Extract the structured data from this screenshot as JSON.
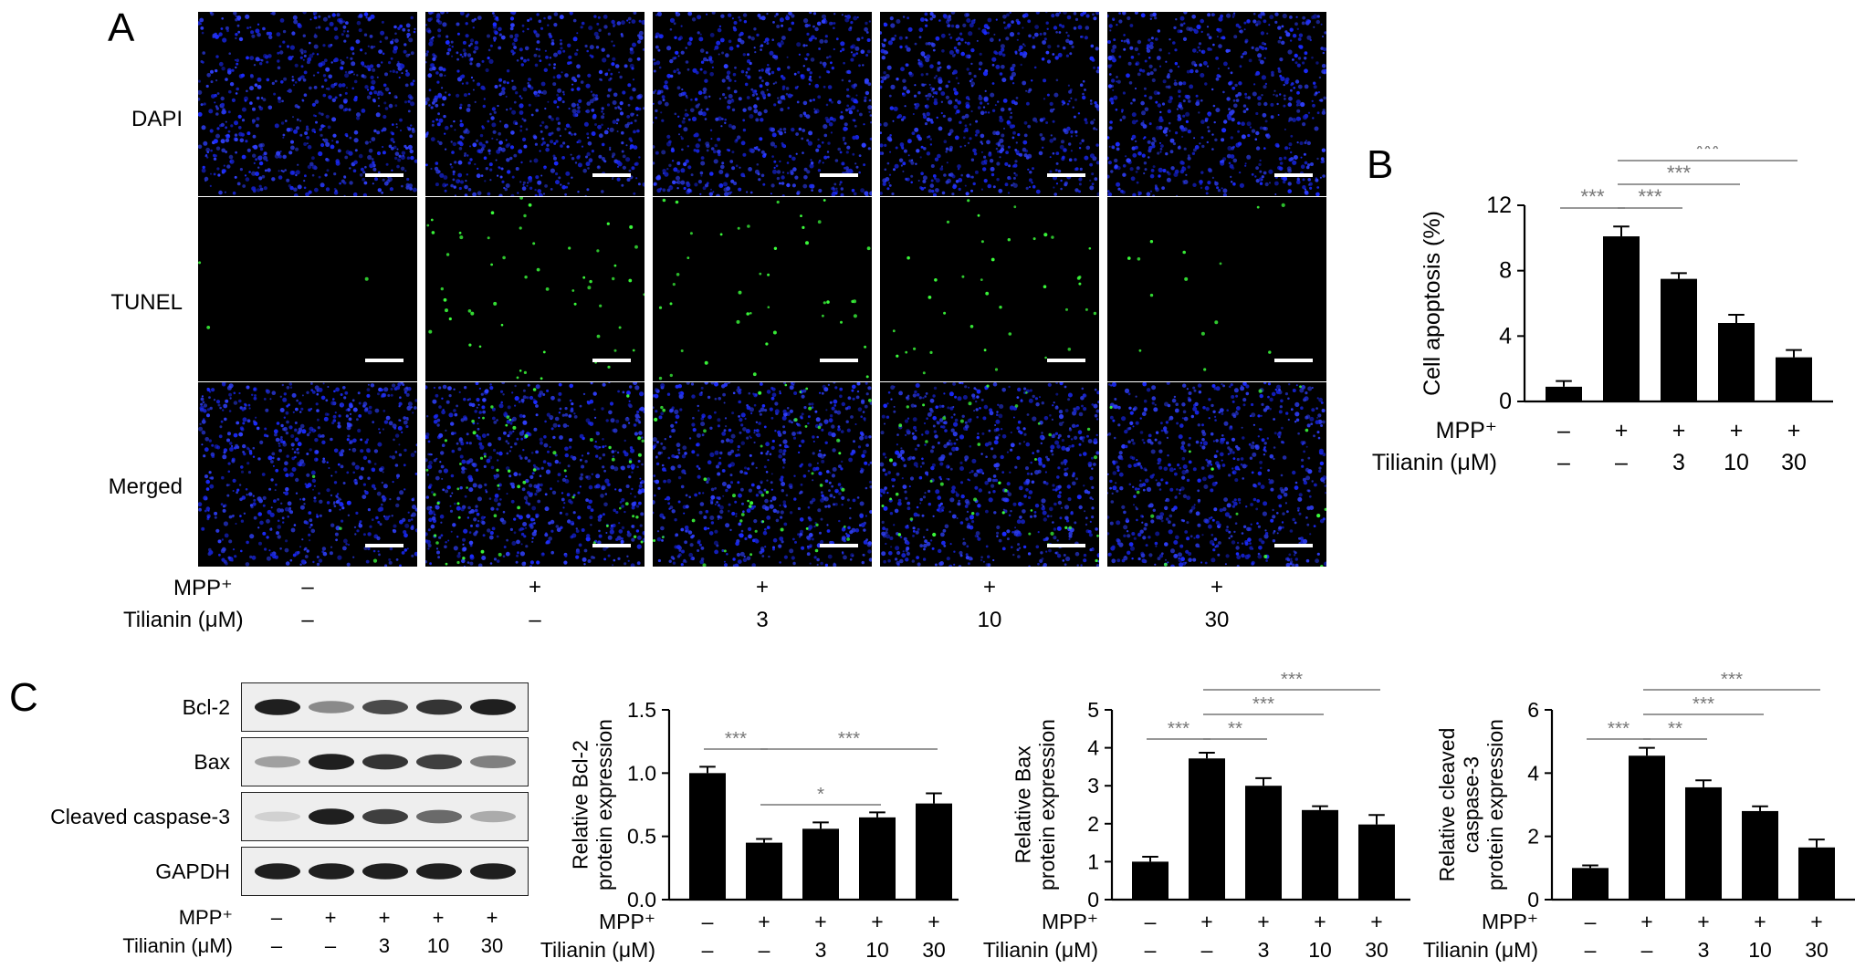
{
  "panels": {
    "a": "A",
    "b": "B",
    "c": "C"
  },
  "panel_a": {
    "row_labels": [
      "DAPI",
      "TUNEL",
      "Merged"
    ],
    "condition_labels": {
      "mpp": "MPP⁺",
      "tilianin": "Tilianin (μM)"
    },
    "mpp_values": [
      "–",
      "+",
      "+",
      "+",
      "+"
    ],
    "tilianin_values": [
      "–",
      "–",
      "3",
      "10",
      "30"
    ]
  },
  "panel_c_blot": {
    "band_labels": [
      "Bcl-2",
      "Bax",
      "Cleaved caspase-3",
      "GAPDH"
    ],
    "band_intensities": [
      [
        0.95,
        0.45,
        0.75,
        0.85,
        0.95
      ],
      [
        0.35,
        0.95,
        0.85,
        0.8,
        0.5
      ],
      [
        0.12,
        0.95,
        0.8,
        0.6,
        0.3
      ],
      [
        0.95,
        0.95,
        0.95,
        0.95,
        0.95
      ]
    ],
    "mpp_label": "MPP⁺",
    "tilianin_label": "Tilianin (μM)",
    "mpp_values": [
      "–",
      "+",
      "+",
      "+",
      "+"
    ],
    "tilianin_values": [
      "–",
      "–",
      "3",
      "10",
      "30"
    ]
  },
  "chart_data": [
    {
      "id": "apoptosis",
      "type": "bar",
      "categories": [
        "1",
        "2",
        "3",
        "4",
        "5"
      ],
      "values": [
        0.9,
        10.1,
        7.5,
        4.8,
        2.7
      ],
      "errors": [
        0.35,
        0.6,
        0.35,
        0.5,
        0.45
      ],
      "ylabel": "Cell apoptosis (%)",
      "ylabel_lines": [
        "Cell apoptosis (%)"
      ],
      "ylim": [
        0,
        12
      ],
      "yticks": [
        0,
        4,
        8,
        12
      ],
      "xrow_labels": {
        "mpp": "MPP⁺",
        "tilianin": "Tilianin (μM)"
      },
      "mpp_values": [
        "–",
        "+",
        "+",
        "+",
        "+"
      ],
      "tilianin_values": [
        "–",
        "–",
        "3",
        "10",
        "30"
      ],
      "sig": [
        {
          "from": 0,
          "to": 1,
          "level": 0,
          "label": "***"
        },
        {
          "from": 1,
          "to": 2,
          "level": 0,
          "label": "***"
        },
        {
          "from": 1,
          "to": 3,
          "level": 1,
          "label": "***"
        },
        {
          "from": 1,
          "to": 4,
          "level": 2,
          "label": "***"
        }
      ]
    },
    {
      "id": "bcl2",
      "type": "bar",
      "categories": [
        "1",
        "2",
        "3",
        "4",
        "5"
      ],
      "values": [
        1.0,
        0.45,
        0.56,
        0.65,
        0.76
      ],
      "errors": [
        0.05,
        0.03,
        0.05,
        0.04,
        0.08
      ],
      "ylabel": "Relative Bcl-2 protein expression",
      "ylabel_lines": [
        "Relative Bcl-2",
        "protein expression"
      ],
      "ylim": [
        0,
        1.5
      ],
      "yticks": [
        0,
        0.5,
        1.0,
        1.5
      ],
      "ytick_labels": [
        "0.0",
        "0.5",
        "1.0",
        "1.5"
      ],
      "xrow_labels": {
        "mpp": "MPP⁺",
        "tilianin": "Tilianin (μM)"
      },
      "mpp_values": [
        "–",
        "+",
        "+",
        "+",
        "+"
      ],
      "tilianin_values": [
        "–",
        "–",
        "3",
        "10",
        "30"
      ],
      "sig": [
        {
          "from": 0,
          "to": 1,
          "level": 0,
          "label": "***"
        },
        {
          "from": 1,
          "to": 3,
          "level": -1,
          "label": "*"
        },
        {
          "from": 1,
          "to": 4,
          "level": 0,
          "label": "***"
        }
      ]
    },
    {
      "id": "bax",
      "type": "bar",
      "categories": [
        "1",
        "2",
        "3",
        "4",
        "5"
      ],
      "values": [
        1.0,
        3.72,
        3.0,
        2.36,
        1.98
      ],
      "errors": [
        0.13,
        0.15,
        0.2,
        0.1,
        0.25
      ],
      "ylabel": "Relative Bax protein expression",
      "ylabel_lines": [
        "Relative Bax",
        "protein expression"
      ],
      "ylim": [
        0,
        5
      ],
      "yticks": [
        0,
        1,
        2,
        3,
        4,
        5
      ],
      "xrow_labels": {
        "mpp": "MPP⁺",
        "tilianin": "Tilianin (μM)"
      },
      "mpp_values": [
        "–",
        "+",
        "+",
        "+",
        "+"
      ],
      "tilianin_values": [
        "–",
        "–",
        "3",
        "10",
        "30"
      ],
      "sig": [
        {
          "from": 0,
          "to": 1,
          "level": 0,
          "label": "***"
        },
        {
          "from": 1,
          "to": 2,
          "level": 0,
          "label": "**"
        },
        {
          "from": 1,
          "to": 3,
          "level": 1,
          "label": "***"
        },
        {
          "from": 1,
          "to": 4,
          "level": 2,
          "label": "***"
        }
      ]
    },
    {
      "id": "casp3",
      "type": "bar",
      "categories": [
        "1",
        "2",
        "3",
        "4",
        "5"
      ],
      "values": [
        1.0,
        4.55,
        3.55,
        2.8,
        1.65
      ],
      "errors": [
        0.08,
        0.25,
        0.22,
        0.15,
        0.25
      ],
      "ylabel": "Relative cleaved caspase-3 protein expression",
      "ylabel_lines": [
        "Relative cleaved",
        "caspase-3",
        "protein expression"
      ],
      "ylim": [
        0,
        6
      ],
      "yticks": [
        0,
        2,
        4,
        6
      ],
      "xrow_labels": {
        "mpp": "MPP⁺",
        "tilianin": "Tilianin (μM)"
      },
      "mpp_values": [
        "–",
        "+",
        "+",
        "+",
        "+"
      ],
      "tilianin_values": [
        "–",
        "–",
        "3",
        "10",
        "30"
      ],
      "sig": [
        {
          "from": 0,
          "to": 1,
          "level": 0,
          "label": "***"
        },
        {
          "from": 1,
          "to": 2,
          "level": 0,
          "label": "**"
        },
        {
          "from": 1,
          "to": 3,
          "level": 1,
          "label": "***"
        },
        {
          "from": 1,
          "to": 4,
          "level": 2,
          "label": "***"
        }
      ]
    }
  ]
}
